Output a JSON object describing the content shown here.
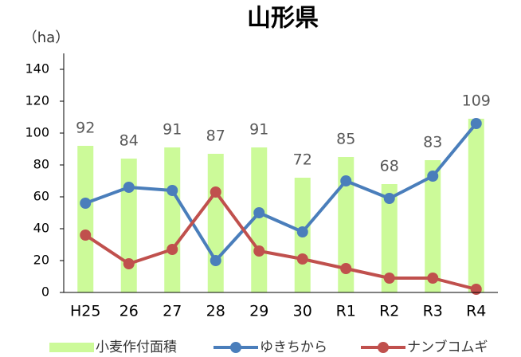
{
  "chart_data": {
    "type": "combo",
    "title": "山形県",
    "y_label": "（ha）",
    "categories": [
      "H25",
      "26",
      "27",
      "28",
      "29",
      "30",
      "R1",
      "R2",
      "R3",
      "R4"
    ],
    "series": [
      {
        "name": "小麦作付面積",
        "type": "bar",
        "color": "#ccfa99",
        "values": [
          92,
          84,
          91,
          87,
          91,
          72,
          85,
          68,
          83,
          109
        ]
      },
      {
        "name": "ゆきちから",
        "type": "line",
        "color": "#4a7ebb",
        "values": [
          56,
          66,
          64,
          20,
          50,
          38,
          70,
          59,
          73,
          106
        ]
      },
      {
        "name": "ナンブコムギ",
        "type": "line",
        "color": "#c0504d",
        "values": [
          36,
          18,
          27,
          63,
          26,
          21,
          15,
          9,
          9,
          2
        ]
      }
    ],
    "ylim": [
      0,
      140
    ],
    "yticks": [
      0,
      20,
      40,
      60,
      80,
      100,
      120,
      140
    ],
    "grid": false
  }
}
